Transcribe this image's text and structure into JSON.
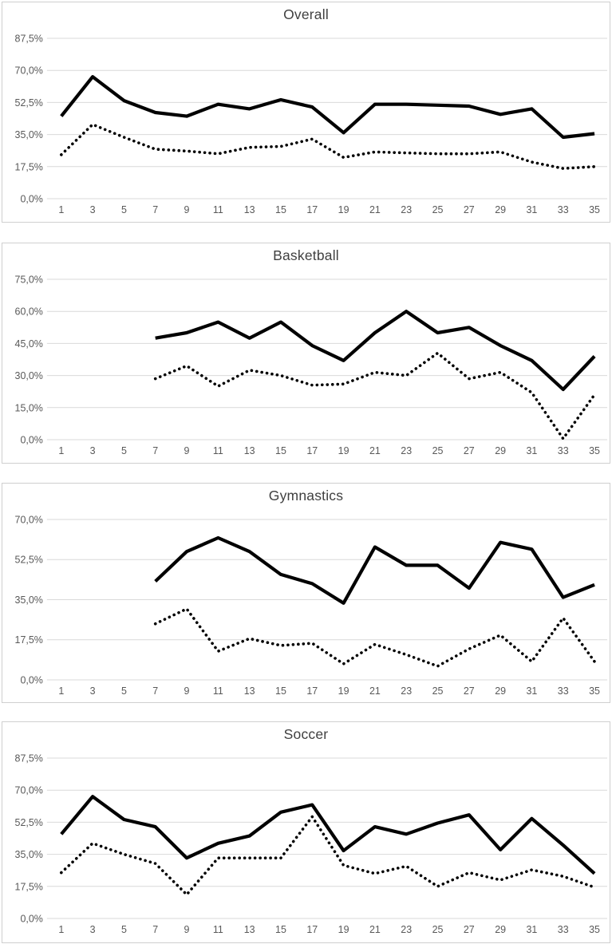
{
  "page": {
    "background": "#ffffff",
    "line_color": "#000000",
    "grid_color": "#d9d9d9",
    "axis_label_color": "#595959",
    "title_color": "#404040",
    "panel_border_color": "#cfcfcf"
  },
  "chart_data": [
    {
      "type": "line",
      "title": "Overall",
      "grid": true,
      "legend_position": "none",
      "xlabel": "",
      "ylabel": "",
      "xlim": [
        1,
        35
      ],
      "ylim": [
        0,
        87.5
      ],
      "x_tick_labels": [
        "1",
        "3",
        "5",
        "7",
        "9",
        "11",
        "13",
        "15",
        "17",
        "19",
        "21",
        "23",
        "25",
        "27",
        "29",
        "31",
        "33",
        "35"
      ],
      "x_tick_values": [
        1,
        3,
        5,
        7,
        9,
        11,
        13,
        15,
        17,
        19,
        21,
        23,
        25,
        27,
        29,
        31,
        33,
        35
      ],
      "y_ticks": [
        {
          "label": "0,0%",
          "value": 0
        },
        {
          "label": "17,5%",
          "value": 17.5
        },
        {
          "label": "35,0%",
          "value": 35
        },
        {
          "label": "52,5%",
          "value": 52.5
        },
        {
          "label": "70,0%",
          "value": 70
        },
        {
          "label": "87,5%",
          "value": 87.5
        }
      ],
      "series": [
        {
          "name": "solid-line",
          "style": "solid",
          "x": [
            1,
            3,
            5,
            7,
            9,
            11,
            13,
            15,
            17,
            19,
            21,
            23,
            25,
            27,
            29,
            31,
            33,
            35
          ],
          "values": [
            45,
            66.5,
            53.5,
            47,
            45,
            51.5,
            49,
            54,
            50,
            36,
            51.5,
            51.5,
            51,
            50.5,
            46,
            49,
            33.5,
            35.5
          ]
        },
        {
          "name": "dotted-line",
          "style": "dotted",
          "x": [
            1,
            3,
            5,
            7,
            9,
            11,
            13,
            15,
            17,
            19,
            21,
            23,
            25,
            27,
            29,
            31,
            33,
            35
          ],
          "values": [
            24,
            40.5,
            33.5,
            27,
            26,
            24.5,
            28,
            28.5,
            32.5,
            22.5,
            25.5,
            25,
            24.5,
            24.5,
            25.5,
            20,
            16.5,
            17.5
          ]
        }
      ]
    },
    {
      "type": "line",
      "title": "Basketball",
      "grid": true,
      "legend_position": "none",
      "xlabel": "",
      "ylabel": "",
      "xlim": [
        1,
        35
      ],
      "ylim": [
        0,
        75
      ],
      "x_tick_labels": [
        "1",
        "3",
        "5",
        "7",
        "9",
        "11",
        "13",
        "15",
        "17",
        "19",
        "21",
        "23",
        "25",
        "27",
        "29",
        "31",
        "33",
        "35"
      ],
      "x_tick_values": [
        1,
        3,
        5,
        7,
        9,
        11,
        13,
        15,
        17,
        19,
        21,
        23,
        25,
        27,
        29,
        31,
        33,
        35
      ],
      "y_ticks": [
        {
          "label": "0,0%",
          "value": 0
        },
        {
          "label": "15,0%",
          "value": 15
        },
        {
          "label": "30,0%",
          "value": 30
        },
        {
          "label": "45,0%",
          "value": 45
        },
        {
          "label": "60,0%",
          "value": 60
        },
        {
          "label": "75,0%",
          "value": 75
        }
      ],
      "series": [
        {
          "name": "solid-line",
          "style": "solid",
          "x": [
            7,
            9,
            11,
            13,
            15,
            17,
            19,
            21,
            23,
            25,
            27,
            29,
            31,
            33,
            35
          ],
          "values": [
            47.5,
            50,
            55,
            47.5,
            55,
            44,
            37,
            50,
            60,
            50,
            52.5,
            44,
            37,
            23.5,
            39
          ]
        },
        {
          "name": "dotted-line",
          "style": "dotted",
          "x": [
            7,
            9,
            11,
            13,
            15,
            17,
            19,
            21,
            23,
            25,
            27,
            29,
            31,
            33,
            35
          ],
          "values": [
            28.5,
            34.5,
            25,
            32.5,
            30,
            25.5,
            26,
            31.5,
            30,
            40.5,
            28.5,
            31.5,
            22,
            0.5,
            21
          ]
        }
      ]
    },
    {
      "type": "line",
      "title": "Gymnastics",
      "grid": true,
      "legend_position": "none",
      "xlabel": "",
      "ylabel": "",
      "xlim": [
        1,
        35
      ],
      "ylim": [
        0,
        70
      ],
      "x_tick_labels": [
        "1",
        "3",
        "5",
        "7",
        "9",
        "11",
        "13",
        "15",
        "17",
        "19",
        "21",
        "23",
        "25",
        "27",
        "29",
        "31",
        "33",
        "35"
      ],
      "x_tick_values": [
        1,
        3,
        5,
        7,
        9,
        11,
        13,
        15,
        17,
        19,
        21,
        23,
        25,
        27,
        29,
        31,
        33,
        35
      ],
      "y_ticks": [
        {
          "label": "0,0%",
          "value": 0
        },
        {
          "label": "17,5%",
          "value": 17.5
        },
        {
          "label": "35,0%",
          "value": 35
        },
        {
          "label": "52,5%",
          "value": 52.5
        },
        {
          "label": "70,0%",
          "value": 70
        }
      ],
      "series": [
        {
          "name": "solid-line",
          "style": "solid",
          "x": [
            7,
            9,
            11,
            13,
            15,
            17,
            19,
            21,
            23,
            25,
            27,
            29,
            31,
            33,
            35
          ],
          "values": [
            43,
            56,
            62,
            56,
            46,
            42,
            33.5,
            58,
            50,
            50,
            40,
            60,
            57,
            36,
            41.5
          ]
        },
        {
          "name": "dotted-line",
          "style": "dotted",
          "x": [
            7,
            9,
            11,
            13,
            15,
            17,
            19,
            21,
            23,
            25,
            27,
            29,
            31,
            33,
            35
          ],
          "values": [
            24.5,
            31,
            12.5,
            18,
            15,
            16,
            7,
            15.5,
            11,
            6,
            13.5,
            19.5,
            8,
            27,
            8
          ]
        }
      ]
    },
    {
      "type": "line",
      "title": "Soccer",
      "grid": true,
      "legend_position": "none",
      "xlabel": "",
      "ylabel": "",
      "xlim": [
        1,
        35
      ],
      "ylim": [
        0,
        87.5
      ],
      "x_tick_labels": [
        "1",
        "3",
        "5",
        "7",
        "9",
        "11",
        "13",
        "15",
        "17",
        "19",
        "21",
        "23",
        "25",
        "27",
        "29",
        "31",
        "33",
        "35"
      ],
      "x_tick_values": [
        1,
        3,
        5,
        7,
        9,
        11,
        13,
        15,
        17,
        19,
        21,
        23,
        25,
        27,
        29,
        31,
        33,
        35
      ],
      "y_ticks": [
        {
          "label": "0,0%",
          "value": 0
        },
        {
          "label": "17,5%",
          "value": 17.5
        },
        {
          "label": "35,0%",
          "value": 35
        },
        {
          "label": "52,5%",
          "value": 52.5
        },
        {
          "label": "70,0%",
          "value": 70
        },
        {
          "label": "87,5%",
          "value": 87.5
        }
      ],
      "series": [
        {
          "name": "solid-line",
          "style": "solid",
          "x": [
            1,
            3,
            5,
            7,
            9,
            11,
            13,
            15,
            17,
            19,
            21,
            23,
            25,
            27,
            29,
            31,
            33,
            35
          ],
          "values": [
            46,
            66.5,
            54,
            50,
            33,
            41,
            45,
            58,
            62,
            37,
            50,
            46,
            52,
            56.5,
            37.5,
            54.5,
            40,
            24.5
          ]
        },
        {
          "name": "dotted-line",
          "style": "dotted",
          "x": [
            1,
            3,
            5,
            7,
            9,
            11,
            13,
            15,
            17,
            19,
            21,
            23,
            25,
            27,
            29,
            31,
            33,
            35
          ],
          "values": [
            25,
            41,
            35,
            30,
            13,
            33,
            33,
            33,
            55.5,
            29,
            24.5,
            28.5,
            17.5,
            25,
            21,
            26.5,
            23,
            17
          ]
        }
      ]
    }
  ]
}
